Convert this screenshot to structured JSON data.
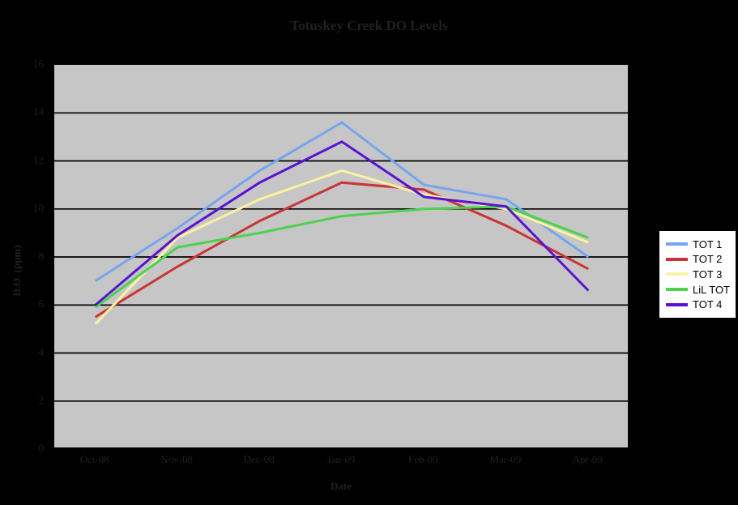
{
  "colors": {
    "background": "#000000",
    "plot_background": "#C6C6C6",
    "gridline": "#000000",
    "axis_text": "#202020",
    "legend_background": "#FFFFFF",
    "legend_border": "#000000",
    "legend_text": "#000000"
  },
  "chart_data": {
    "type": "line",
    "title": "Totuskey Creek DO Levels",
    "xlabel": "Date",
    "ylabel": "D.O. (ppm)",
    "categories": [
      "Oct-08",
      "Nov-08",
      "Dec-08",
      "Jan-09",
      "Feb-09",
      "Mar-09",
      "Apr-09"
    ],
    "ylim": [
      0,
      16
    ],
    "ytick_step": 2,
    "yticks": [
      "0",
      "2",
      "4",
      "6",
      "8",
      "10",
      "12",
      "14",
      "16"
    ],
    "grid": "horizontal-only",
    "legend_position": "right",
    "series": [
      {
        "name": "TOT 1",
        "color": "#76A5F0",
        "values": [
          7.0,
          9.2,
          11.6,
          13.6,
          11.0,
          10.4,
          8.0
        ]
      },
      {
        "name": "TOT 2",
        "color": "#CC3333",
        "values": [
          5.5,
          7.6,
          9.5,
          11.1,
          10.8,
          9.3,
          7.5
        ]
      },
      {
        "name": "TOT 3",
        "color": "#FBF2A0",
        "values": [
          5.2,
          8.8,
          10.4,
          11.6,
          10.6,
          10.0,
          8.6
        ]
      },
      {
        "name": "LiL TOT",
        "color": "#4BD34B",
        "values": [
          5.9,
          8.4,
          9.0,
          9.7,
          10.0,
          10.1,
          8.8
        ]
      },
      {
        "name": "TOT 4",
        "color": "#5812D6",
        "values": [
          6.0,
          8.9,
          11.1,
          12.8,
          10.5,
          10.1,
          6.6
        ]
      }
    ]
  }
}
